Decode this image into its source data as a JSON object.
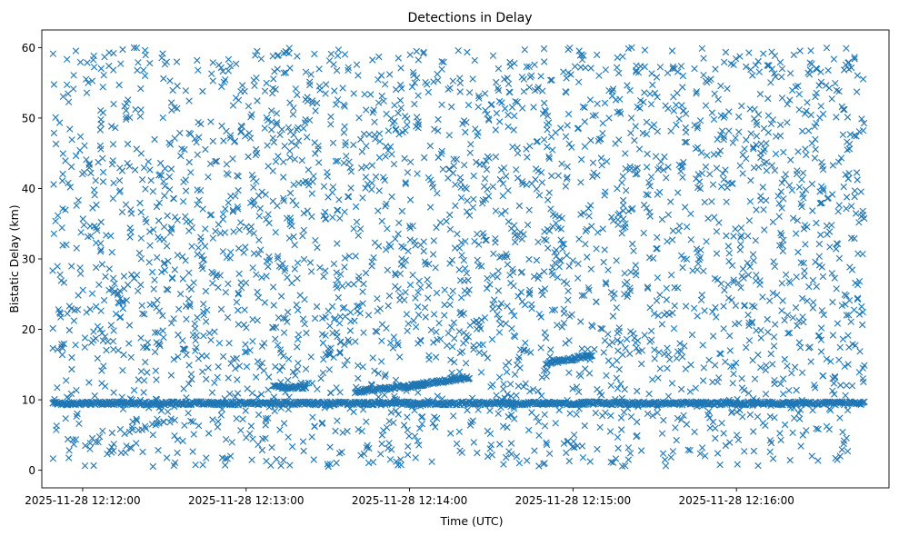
{
  "chart_data": {
    "type": "scatter",
    "title": "Detections in Delay",
    "xlabel": "Time (UTC)",
    "ylabel": "Bistatic Delay (km)",
    "x_ticks": [
      "2025-11-28 12:12:00",
      "2025-11-28 12:13:00",
      "2025-11-28 12:14:00",
      "2025-11-28 12:15:00",
      "2025-11-28 12:16:00"
    ],
    "y_ticks": [
      "0",
      "10",
      "20",
      "30",
      "40",
      "50",
      "60"
    ],
    "xlim": [
      "2025-11-28 12:11:45",
      "2025-11-28 12:16:56"
    ],
    "ylim": [
      -2.5,
      62.5
    ],
    "marker": "x",
    "marker_color": "#1f77b4",
    "grid": false,
    "series": [
      {
        "clutter_points": {
          "count": 3000,
          "x_range": [
            "2025-11-28 12:11:49",
            "2025-11-28 12:16:47"
          ],
          "y_range": [
            0.5,
            60
          ]
        },
        "tracks": [
          {
            "x_start": "2025-11-28 12:11:49",
            "x_end": "2025-11-28 12:16:47",
            "y_start": 9.5,
            "y_end": 9.5
          },
          {
            "x_start": "2025-11-28 12:13:40",
            "x_end": "2025-11-28 12:14:05",
            "y_start": 11.2,
            "y_end": 12.1
          },
          {
            "x_start": "2025-11-28 12:14:00",
            "x_end": "2025-11-28 12:14:22",
            "y_start": 12.0,
            "y_end": 13.2
          },
          {
            "x_start": "2025-11-28 12:14:50",
            "x_end": "2025-11-28 12:15:07",
            "y_start": 15.2,
            "y_end": 16.3
          },
          {
            "x_start": "2025-11-28 12:13:10",
            "x_end": "2025-11-28 12:13:22",
            "y_start": 11.8,
            "y_end": 11.8
          }
        ]
      }
    ]
  }
}
